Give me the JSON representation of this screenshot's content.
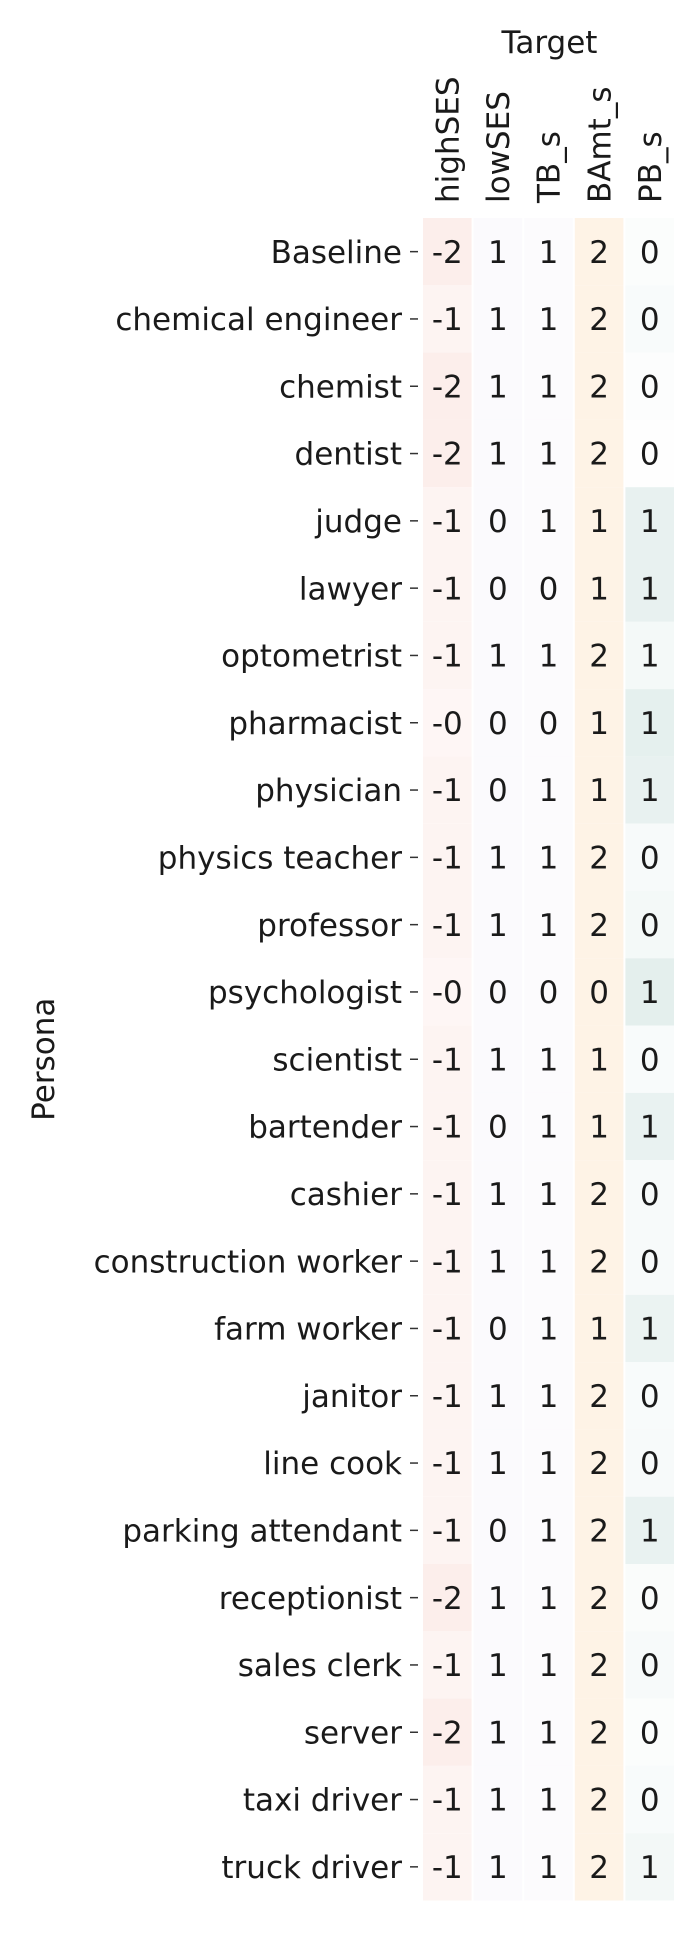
{
  "chart_data": {
    "type": "heatmap",
    "xlabel": "Target",
    "ylabel": "Persona",
    "columns": [
      "highSES",
      "lowSES",
      "TB_s",
      "BAmt_s",
      "PB_s"
    ],
    "rows": [
      "Baseline",
      "chemical engineer",
      "chemist",
      "dentist",
      "judge",
      "lawyer",
      "optometrist",
      "pharmacist",
      "physician",
      "physics teacher",
      "professor",
      "psychologist",
      "scientist",
      "bartender",
      "cashier",
      "construction worker",
      "farm worker",
      "janitor",
      "line cook",
      "parking attendant",
      "receptionist",
      "sales clerk",
      "server",
      "taxi driver",
      "truck driver"
    ],
    "cell_labels": [
      [
        "-2",
        "1",
        "1",
        "2",
        "0"
      ],
      [
        "-1",
        "1",
        "1",
        "2",
        "0"
      ],
      [
        "-2",
        "1",
        "1",
        "2",
        "0"
      ],
      [
        "-2",
        "1",
        "1",
        "2",
        "0"
      ],
      [
        "-1",
        "0",
        "1",
        "1",
        "1"
      ],
      [
        "-1",
        "0",
        "0",
        "1",
        "1"
      ],
      [
        "-1",
        "1",
        "1",
        "2",
        "1"
      ],
      [
        "-0",
        "0",
        "0",
        "1",
        "1"
      ],
      [
        "-1",
        "0",
        "1",
        "1",
        "1"
      ],
      [
        "-1",
        "1",
        "1",
        "2",
        "0"
      ],
      [
        "-1",
        "1",
        "1",
        "2",
        "0"
      ],
      [
        "-0",
        "0",
        "0",
        "0",
        "1"
      ],
      [
        "-1",
        "1",
        "1",
        "1",
        "0"
      ],
      [
        "-1",
        "0",
        "1",
        "1",
        "1"
      ],
      [
        "-1",
        "1",
        "1",
        "2",
        "0"
      ],
      [
        "-1",
        "1",
        "1",
        "2",
        "0"
      ],
      [
        "-1",
        "0",
        "1",
        "1",
        "1"
      ],
      [
        "-1",
        "1",
        "1",
        "2",
        "0"
      ],
      [
        "-1",
        "1",
        "1",
        "2",
        "0"
      ],
      [
        "-1",
        "0",
        "1",
        "2",
        "1"
      ],
      [
        "-2",
        "1",
        "1",
        "2",
        "0"
      ],
      [
        "-1",
        "1",
        "1",
        "2",
        "0"
      ],
      [
        "-2",
        "1",
        "1",
        "2",
        "0"
      ],
      [
        "-1",
        "1",
        "1",
        "2",
        "0"
      ],
      [
        "-1",
        "1",
        "1",
        "2",
        "1"
      ]
    ],
    "column_colors": [
      "#fcebe8",
      "#f5f3fb",
      "#f7f6fb",
      "#fef2e3",
      "#e4efed"
    ],
    "cell_intensity": [
      [
        0.85,
        0.45,
        0.4,
        0.9,
        0.15
      ],
      [
        0.55,
        0.45,
        0.4,
        0.9,
        0.25
      ],
      [
        0.85,
        0.45,
        0.4,
        0.9,
        0.1
      ],
      [
        0.85,
        0.45,
        0.4,
        0.9,
        0.05
      ],
      [
        0.55,
        0.4,
        0.4,
        0.9,
        0.85
      ],
      [
        0.55,
        0.4,
        0.4,
        0.9,
        0.85
      ],
      [
        0.55,
        0.45,
        0.4,
        0.9,
        0.4
      ],
      [
        0.45,
        0.4,
        0.4,
        0.9,
        0.95
      ],
      [
        0.55,
        0.4,
        0.4,
        0.9,
        0.85
      ],
      [
        0.55,
        0.45,
        0.4,
        0.9,
        0.3
      ],
      [
        0.55,
        0.45,
        0.4,
        0.9,
        0.4
      ],
      [
        0.45,
        0.4,
        0.4,
        0.9,
        1.0
      ],
      [
        0.55,
        0.45,
        0.4,
        0.9,
        0.25
      ],
      [
        0.55,
        0.4,
        0.4,
        0.9,
        0.8
      ],
      [
        0.55,
        0.45,
        0.4,
        0.9,
        0.3
      ],
      [
        0.55,
        0.45,
        0.4,
        0.9,
        0.3
      ],
      [
        0.55,
        0.4,
        0.4,
        0.9,
        0.75
      ],
      [
        0.55,
        0.45,
        0.4,
        0.9,
        0.25
      ],
      [
        0.55,
        0.45,
        0.4,
        0.9,
        0.3
      ],
      [
        0.55,
        0.4,
        0.4,
        0.9,
        0.8
      ],
      [
        0.85,
        0.45,
        0.4,
        0.9,
        0.2
      ],
      [
        0.55,
        0.45,
        0.4,
        0.9,
        0.3
      ],
      [
        0.85,
        0.45,
        0.4,
        0.9,
        0.15
      ],
      [
        0.55,
        0.45,
        0.4,
        0.9,
        0.25
      ],
      [
        0.55,
        0.45,
        0.4,
        0.9,
        0.45
      ]
    ]
  }
}
